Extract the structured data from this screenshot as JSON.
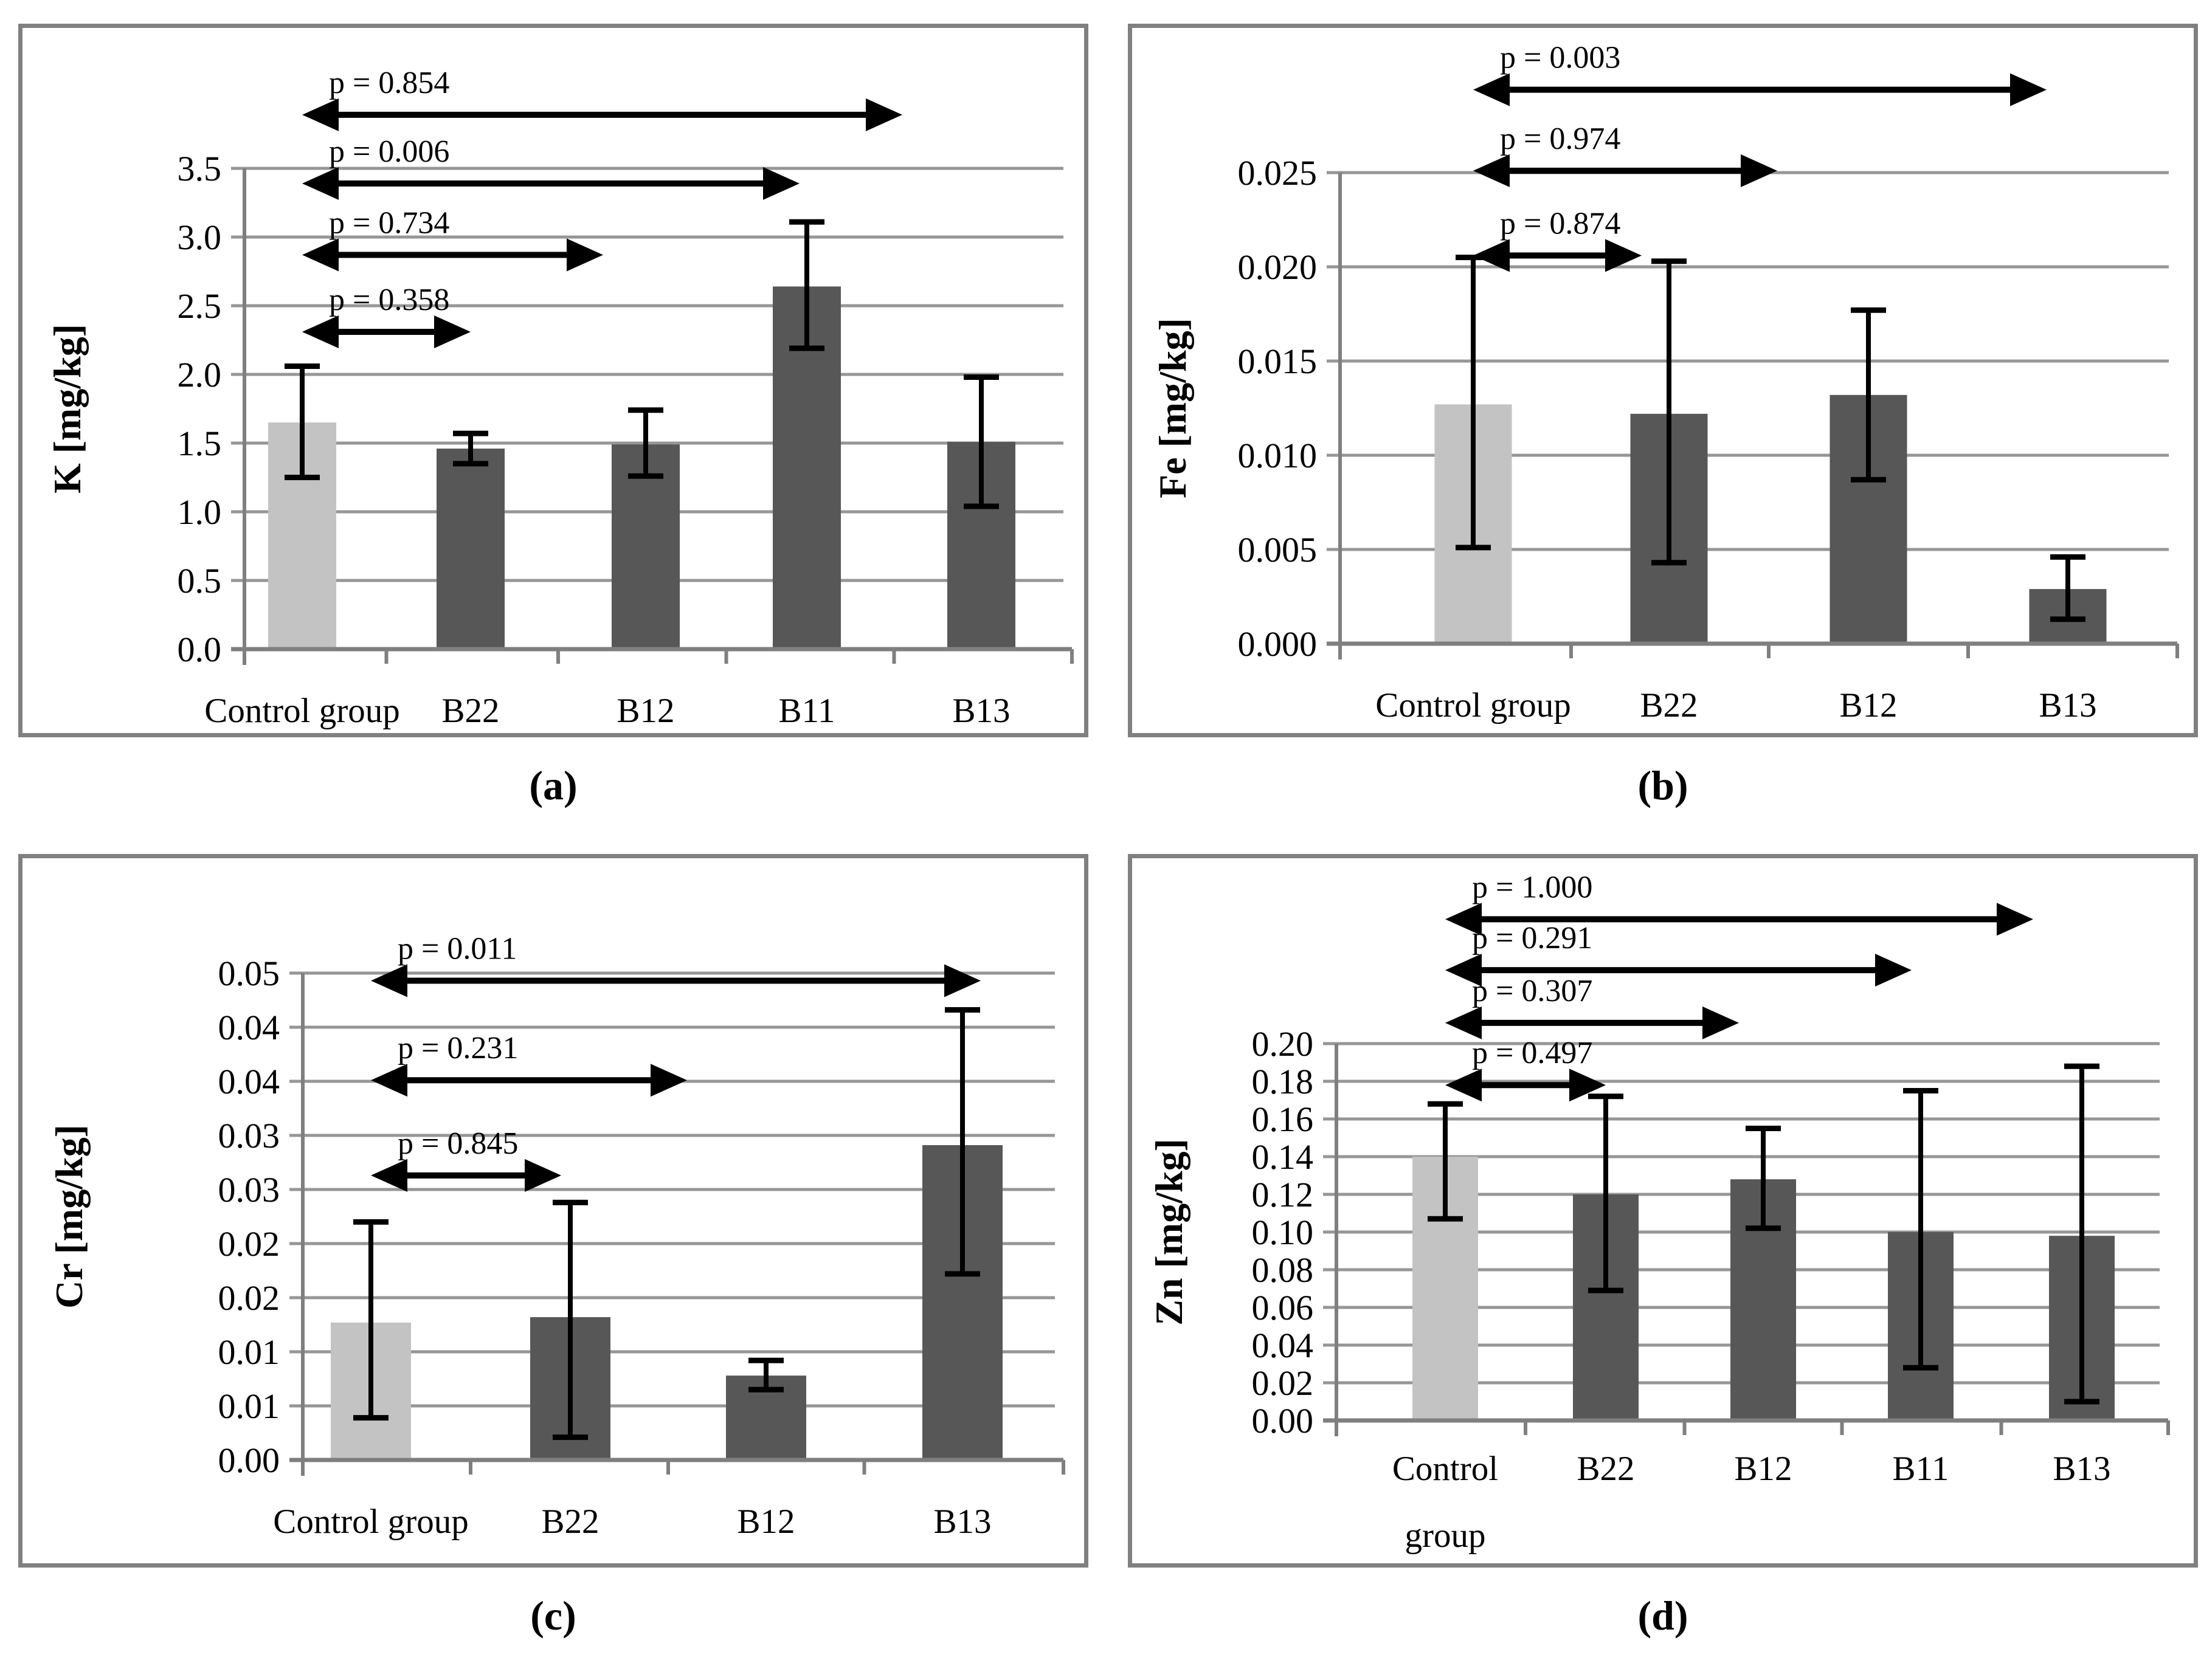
{
  "colors": {
    "control_bar": "#c3c3c3",
    "treatment_bar": "#575757",
    "gridline": "#969696",
    "axis": "#7f7f7f",
    "panel_border": "#808080",
    "text": "#000000",
    "annotation": "#000000"
  },
  "chart_data": [
    {
      "type": "bar",
      "id": "a",
      "caption": "(a)",
      "title": "",
      "xlabel": "",
      "ylabel": "K [mg/kg]",
      "categories": [
        "Control group",
        "B22",
        "B12",
        "B11",
        "B13"
      ],
      "values": [
        1.65,
        1.46,
        1.49,
        2.64,
        1.51
      ],
      "error_low": [
        1.25,
        1.35,
        1.26,
        2.19,
        1.04
      ],
      "error_high": [
        2.06,
        1.57,
        1.74,
        3.11,
        1.98
      ],
      "ylim": [
        0,
        3.5
      ],
      "ytick_step": 0.5,
      "ytick_labels": [
        "0.0",
        "0.5",
        "1.0",
        "1.5",
        "2.0",
        "2.5",
        "3.0",
        "3.5"
      ],
      "grid": true,
      "p_annotations": [
        {
          "label": "p = 0.358",
          "from": 0,
          "to": 1,
          "y": 2.31,
          "dx": 0
        },
        {
          "label": "p = 0.734",
          "from": 0,
          "to": 2,
          "y": 2.87,
          "dx": -70
        },
        {
          "label": "p = 0.006",
          "from": 0,
          "to": 3,
          "y": 3.39,
          "dx": -12
        },
        {
          "label": "p = 0.854",
          "from": 0,
          "to": 4,
          "y": 3.89,
          "dx": -130
        }
      ]
    },
    {
      "type": "bar",
      "id": "b",
      "caption": "(b)",
      "title": "",
      "xlabel": "",
      "ylabel": "Fe [mg/kg]",
      "categories": [
        "Control group",
        "B22",
        "B12",
        "B13"
      ],
      "values": [
        0.0127,
        0.0122,
        0.0132,
        0.0029
      ],
      "error_low": [
        0.0051,
        0.0043,
        0.0087,
        0.0013
      ],
      "error_high": [
        0.0205,
        0.0203,
        0.0177,
        0.0046
      ],
      "ylim": [
        0,
        0.025
      ],
      "ytick_step": 0.005,
      "ytick_labels": [
        "0.000",
        "0.005",
        "0.010",
        "0.015",
        "0.020",
        "0.025"
      ],
      "grid": true,
      "p_annotations": [
        {
          "label": "p = 0.874",
          "from": 0,
          "to": 1,
          "y": 0.0206,
          "dx": -45
        },
        {
          "label": "p = 0.974",
          "from": 0,
          "to": 2,
          "y": 0.0251,
          "dx": -150
        },
        {
          "label": "p = 0.003",
          "from": 0,
          "to": 3,
          "y": 0.0294,
          "dx": -35
        }
      ]
    },
    {
      "type": "bar",
      "id": "c",
      "caption": "(c)",
      "title": "",
      "xlabel": "",
      "ylabel": "Cr [mg/kg]",
      "categories": [
        "Control group",
        "B22",
        "B12",
        "B13"
      ],
      "values": [
        0.0127,
        0.0132,
        0.0078,
        0.0291
      ],
      "error_low": [
        0.0039,
        0.0021,
        0.0065,
        0.0172
      ],
      "error_high": [
        0.022,
        0.0238,
        0.0092,
        0.0416
      ],
      "ylim": [
        0,
        0.045
      ],
      "ytick_step": 0.005,
      "ytick_labels": [
        "0.00",
        "0.01",
        "0.01",
        "0.02",
        "0.02",
        "0.03",
        "0.03",
        "0.04",
        "0.04",
        "0.05"
      ],
      "ytick_note": "labels are 0.005 steps rounded to 2 decimals",
      "grid": true,
      "p_annotations": [
        {
          "label": "p = 0.845",
          "from": 0,
          "to": 1,
          "y": 0.0263,
          "dx": -15
        },
        {
          "label": "p = 0.231",
          "from": 0,
          "to": 2,
          "y": 0.0351,
          "dx": -130
        },
        {
          "label": "p = 0.011",
          "from": 0,
          "to": 3,
          "y": 0.0443,
          "dx": 30
        }
      ]
    },
    {
      "type": "bar",
      "id": "d",
      "caption": "(d)",
      "title": "",
      "xlabel": "",
      "ylabel": "Zn [mg/kg]",
      "categories": [
        "Control\ngroup",
        "B22",
        "B12",
        "B11",
        "B13"
      ],
      "values": [
        0.14,
        0.12,
        0.128,
        0.1,
        0.098
      ],
      "error_low": [
        0.107,
        0.069,
        0.102,
        0.028,
        0.01
      ],
      "error_high": [
        0.168,
        0.172,
        0.155,
        0.175,
        0.188
      ],
      "ylim": [
        0,
        0.2
      ],
      "ytick_step": 0.02,
      "ytick_labels": [
        "0.00",
        "0.02",
        "0.04",
        "0.06",
        "0.08",
        "0.10",
        "0.12",
        "0.14",
        "0.16",
        "0.18",
        "0.20"
      ],
      "grid": true,
      "p_annotations": [
        {
          "label": "p = 0.497",
          "from": 0,
          "to": 1,
          "y": 0.178,
          "dx": 0
        },
        {
          "label": "p = 0.307",
          "from": 0,
          "to": 2,
          "y": 0.211,
          "dx": -40
        },
        {
          "label": "p = 0.291",
          "from": 0,
          "to": 3,
          "y": 0.239,
          "dx": -15
        },
        {
          "label": "p = 1.000",
          "from": 0,
          "to": 4,
          "y": 0.266,
          "dx": -80
        }
      ]
    }
  ]
}
